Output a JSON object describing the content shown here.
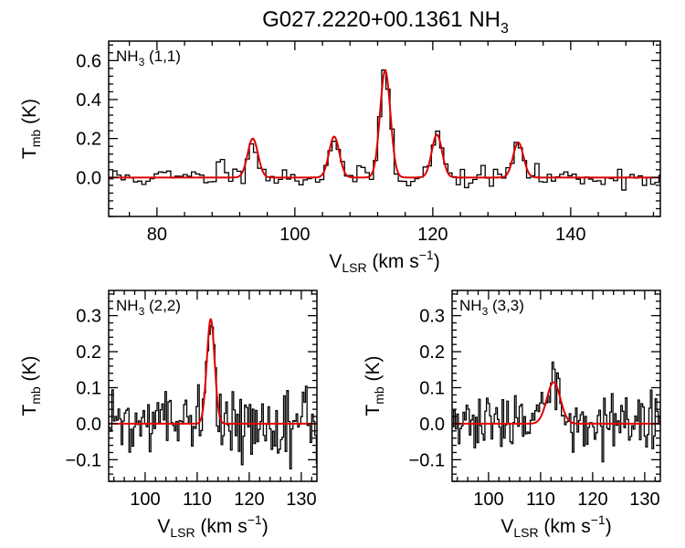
{
  "title_main": "G027.2220+00.1361 NH",
  "title_sub": "3",
  "colors": {
    "observed": "#000000",
    "fit": "#e00000",
    "background": "#ffffff"
  },
  "chart_data": [
    {
      "type": "line",
      "name": "nh3-11",
      "label_main": "NH",
      "label_sub": "3",
      "label_tail": " (1,1)",
      "xlabel_main": "V",
      "xlabel_sub": "LSR",
      "xlabel_unit": " (km s",
      "xlabel_sup": "−1",
      "xlabel_close": ")",
      "ylabel_main": "T",
      "ylabel_sub": "mb",
      "ylabel_unit": " (K)",
      "xlim": [
        73,
        153
      ],
      "ylim": [
        -0.2,
        0.7
      ],
      "xticks": [
        80,
        100,
        120,
        140
      ],
      "yticks": [
        0.0,
        0.2,
        0.4,
        0.6
      ],
      "xtick_labels": [
        "80",
        "100",
        "120",
        "140"
      ],
      "ytick_labels": [
        "0.0",
        "0.2",
        "0.4",
        "0.6"
      ],
      "noise_sigma": 0.026,
      "noise_seed": 11,
      "bin_width": 0.6,
      "fit_components": [
        {
          "center": 93.9,
          "amplitude": 0.2,
          "sigma": 0.75
        },
        {
          "center": 105.7,
          "amplitude": 0.21,
          "sigma": 0.75
        },
        {
          "center": 113.1,
          "amplitude": 0.55,
          "sigma": 0.75
        },
        {
          "center": 120.6,
          "amplitude": 0.22,
          "sigma": 0.75
        },
        {
          "center": 132.4,
          "amplitude": 0.18,
          "sigma": 0.75
        }
      ],
      "extra_features": [
        {
          "center": 89.5,
          "amplitude": 0.08,
          "sigma": 0.6
        }
      ]
    },
    {
      "type": "line",
      "name": "nh3-22",
      "label_main": "NH",
      "label_sub": "3",
      "label_tail": " (2,2)",
      "xlabel_main": "V",
      "xlabel_sub": "LSR",
      "xlabel_unit": " (km s",
      "xlabel_sup": "−1",
      "xlabel_close": ")",
      "ylabel_main": "T",
      "ylabel_sub": "mb",
      "ylabel_unit": " (K)",
      "xlim": [
        93,
        133
      ],
      "ylim": [
        -0.16,
        0.37
      ],
      "xticks": [
        100,
        110,
        120,
        130
      ],
      "yticks": [
        -0.1,
        0.0,
        0.1,
        0.2,
        0.3
      ],
      "xtick_labels": [
        "100",
        "110",
        "120",
        "130"
      ],
      "ytick_labels": [
        "−0.1",
        "0.0",
        "0.1",
        "0.2",
        "0.3"
      ],
      "noise_sigma": 0.042,
      "noise_seed": 22,
      "bin_width": 0.3,
      "fit_components": [
        {
          "center": 112.6,
          "amplitude": 0.29,
          "sigma": 0.75
        }
      ],
      "extra_features": []
    },
    {
      "type": "line",
      "name": "nh3-33",
      "label_main": "NH",
      "label_sub": "3",
      "label_tail": " (3,3)",
      "xlabel_main": "V",
      "xlabel_sub": "LSR",
      "xlabel_unit": " (km s",
      "xlabel_sup": "−1",
      "xlabel_close": ")",
      "ylabel_main": "T",
      "ylabel_sub": "mb",
      "ylabel_unit": " (K)",
      "xlim": [
        93,
        133
      ],
      "ylim": [
        -0.16,
        0.37
      ],
      "xticks": [
        100,
        110,
        120,
        130
      ],
      "yticks": [
        -0.1,
        0.0,
        0.1,
        0.2,
        0.3
      ],
      "xtick_labels": [
        "100",
        "110",
        "120",
        "130"
      ],
      "ytick_labels": [
        "−0.1",
        "0.0",
        "0.1",
        "0.2",
        "0.3"
      ],
      "noise_sigma": 0.036,
      "noise_seed": 33,
      "bin_width": 0.3,
      "fit_components": [
        {
          "center": 112.5,
          "amplitude": 0.115,
          "sigma": 1.3
        }
      ],
      "extra_features": []
    }
  ]
}
